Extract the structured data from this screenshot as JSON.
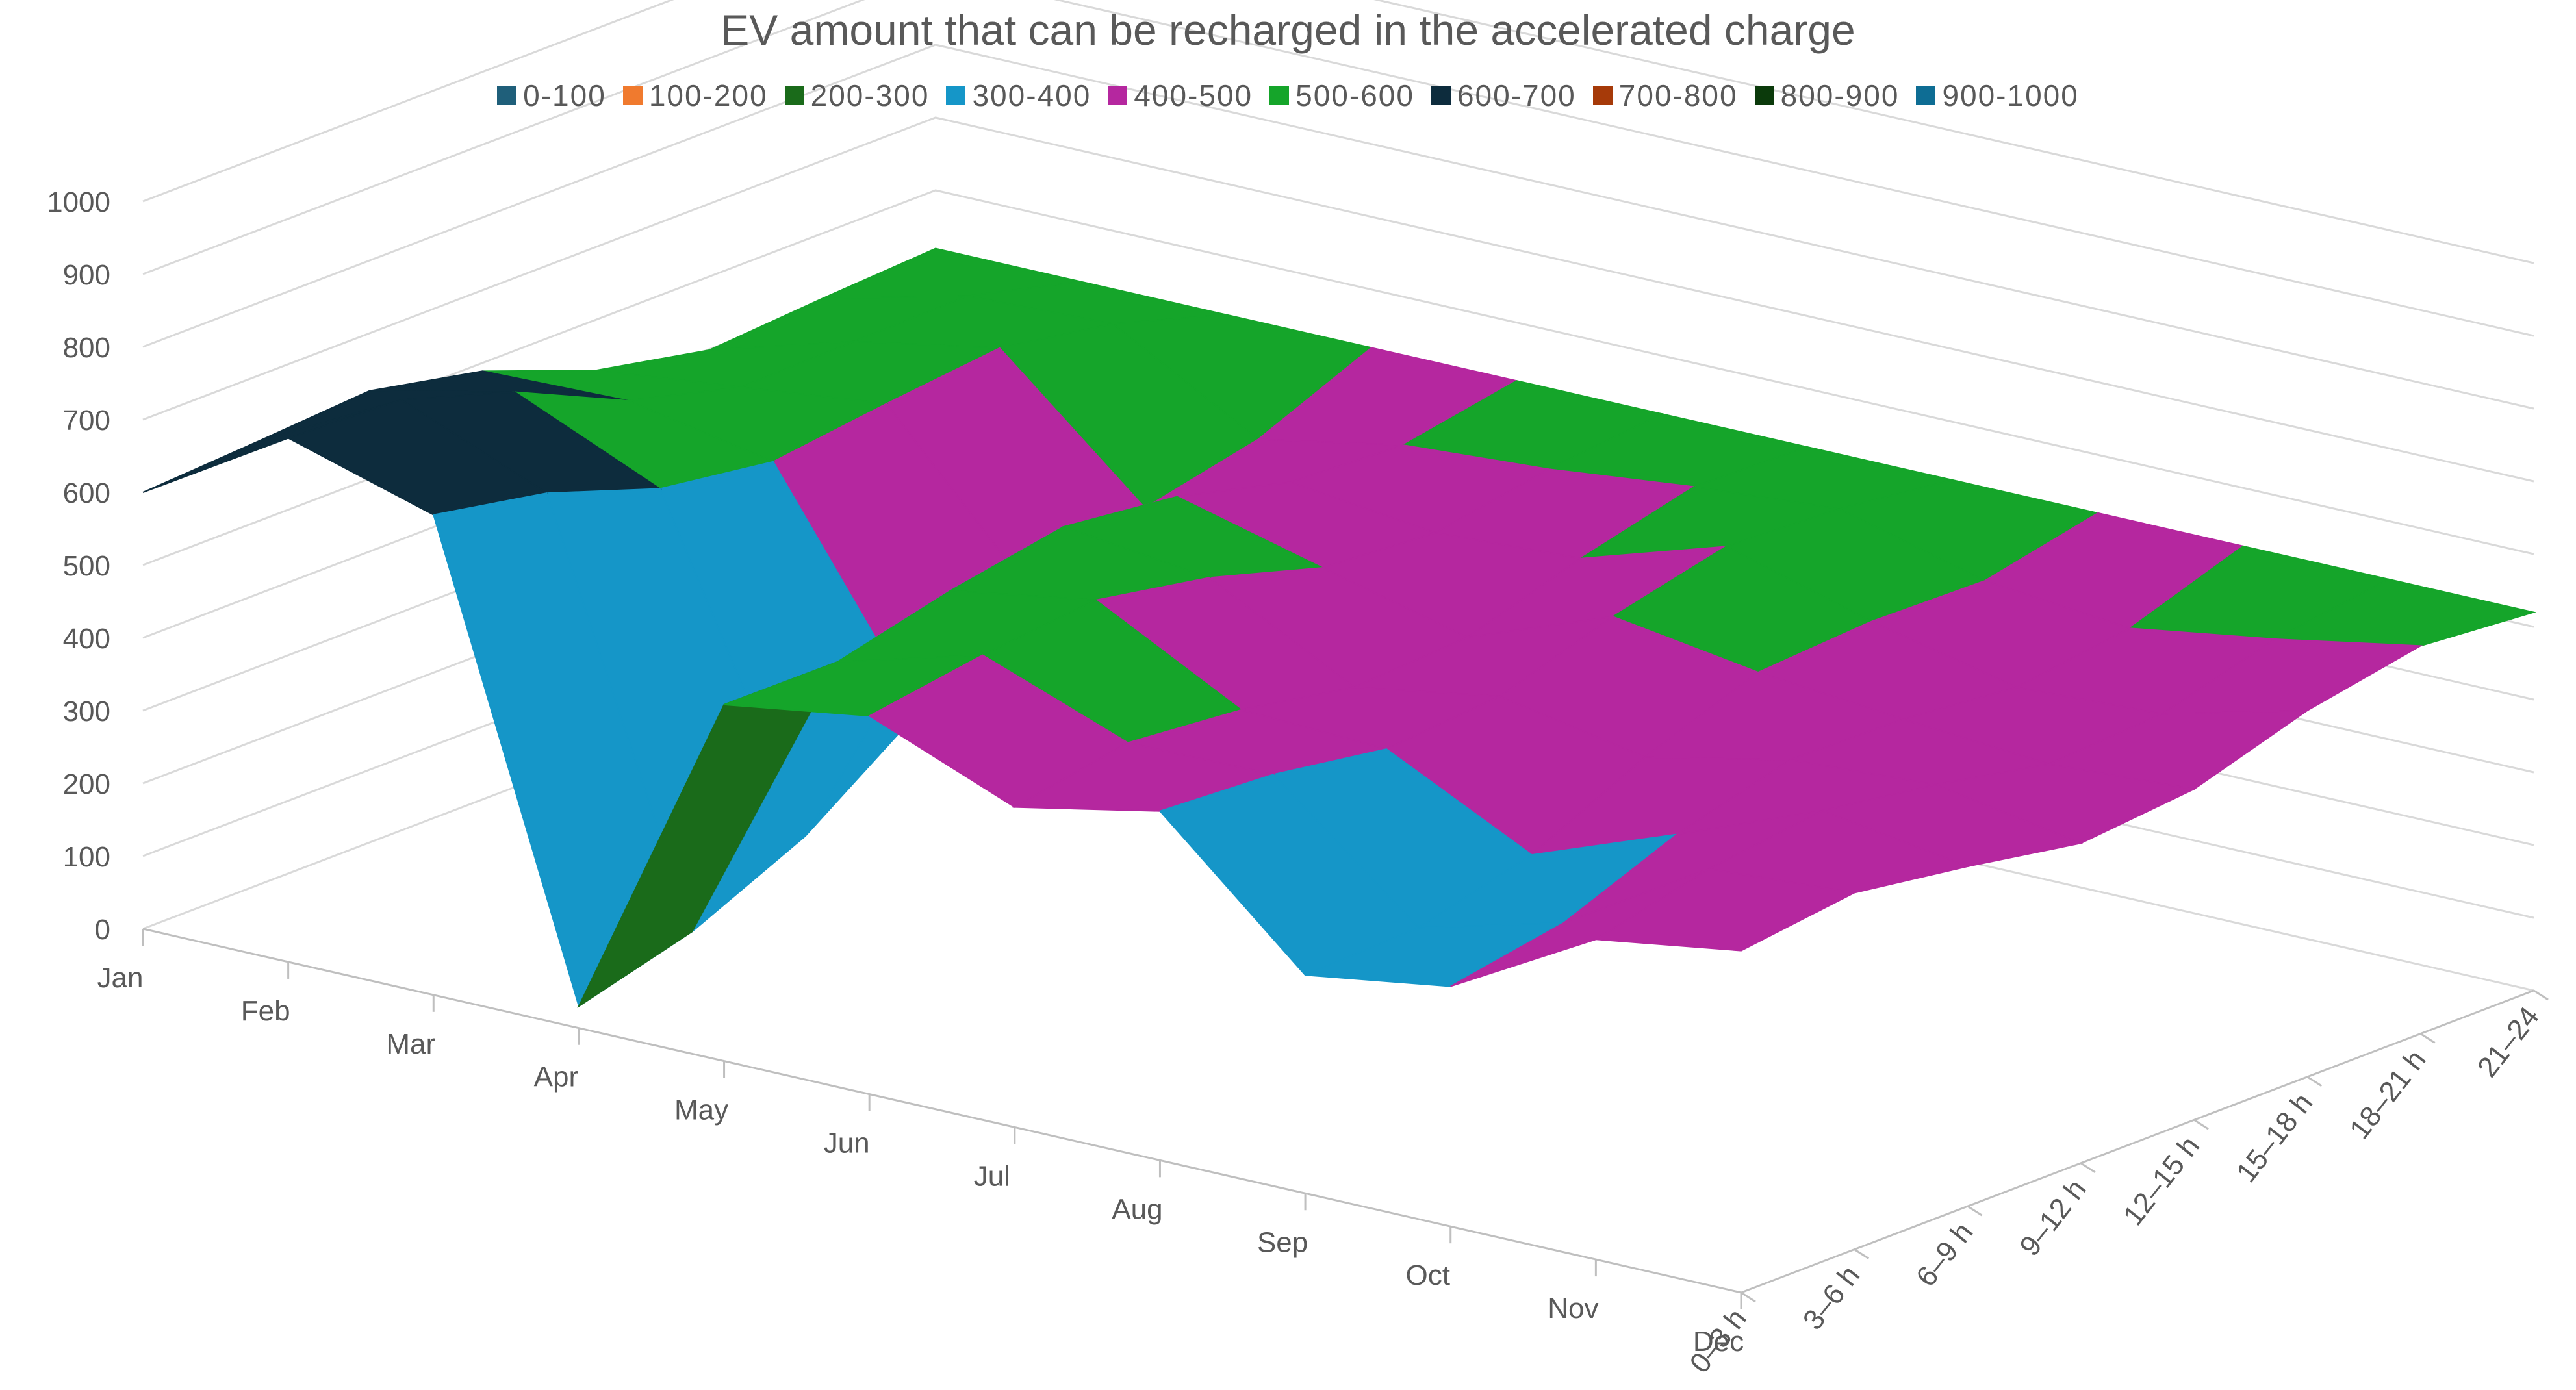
{
  "chart_data": {
    "type": "surface",
    "title": "EV amount that can be recharged in the accelerated charge",
    "legend": [
      {
        "label": "0-100",
        "color": "#1f5f7a"
      },
      {
        "label": "100-200",
        "color": "#f07a2e"
      },
      {
        "label": "200-300",
        "color": "#1a6b1a"
      },
      {
        "label": "300-400",
        "color": "#1596c8"
      },
      {
        "label": "400-500",
        "color": "#b5279f"
      },
      {
        "label": "500-600",
        "color": "#15a52a"
      },
      {
        "label": "600-700",
        "color": "#0d2c3d"
      },
      {
        "label": "700-800",
        "color": "#a63a09"
      },
      {
        "label": "800-900",
        "color": "#0b3a0b"
      },
      {
        "label": "900-1000",
        "color": "#0e6d94"
      }
    ],
    "z_axis": {
      "min": 0,
      "max": 1000,
      "step": 100,
      "ticks": [
        "0",
        "100",
        "200",
        "300",
        "400",
        "500",
        "600",
        "700",
        "800",
        "900",
        "1000"
      ]
    },
    "months": [
      "Jan",
      "Feb",
      "Mar",
      "Apr",
      "May",
      "Jun",
      "Jul",
      "Aug",
      "Sep",
      "Oct",
      "Nov",
      "Dec"
    ],
    "time_bands": [
      "0–3 h",
      "3–6 h",
      "6–9 h",
      "9–12 h",
      "12–15 h",
      "15–18 h",
      "18–21 h",
      "21–24"
    ],
    "front_series_by_month": [
      600,
      720,
      660,
      30,
      490,
      520,
      440,
      480,
      300,
      330,
      440,
      470
    ]
  }
}
